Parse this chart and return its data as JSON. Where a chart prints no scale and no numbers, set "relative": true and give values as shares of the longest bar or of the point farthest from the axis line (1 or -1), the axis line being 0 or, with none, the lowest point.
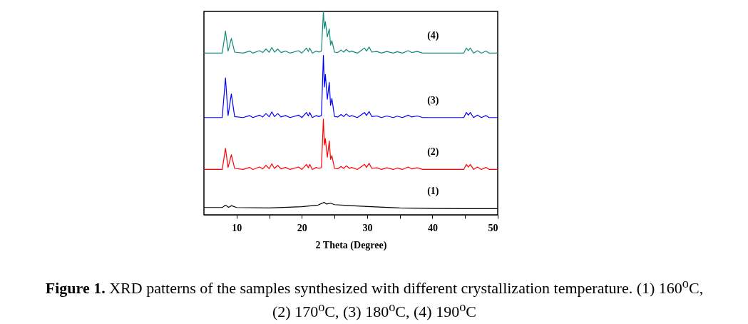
{
  "chart_data": {
    "type": "line",
    "relative": true,
    "title": "Figure 1. XRD patterns of the samples synthesized with different crystallization temperature. (1) 160$^{o}$C, (2) 170$^{o}$C, (3) 180$^{o}$C, (4) 190$^{o}$C",
    "xlabel": "2 Theta (Degree)",
    "xlim": [
      5,
      50
    ],
    "xticks": [
      10,
      {
        "value": 15,
        "label": null
      },
      20,
      {
        "value": 25,
        "label": null
      },
      30,
      {
        "value": 35,
        "label": null
      },
      40,
      {
        "value": 45,
        "label": null
      },
      50
    ],
    "grid": false,
    "legend": false,
    "marker": "none",
    "line_style": "solid",
    "x": [
      5,
      7.8,
      8.3,
      8.7,
      9.2,
      9.7,
      11,
      12,
      12.5,
      13.5,
      14,
      14.5,
      15,
      15.4,
      15.8,
      16.3,
      16.8,
      17.5,
      18.2,
      19.5,
      20,
      20.7,
      21,
      21.2,
      21.6,
      22.2,
      22.6,
      23,
      23.3,
      23.45,
      23.6,
      23.9,
      24.2,
      24.4,
      24.6,
      25,
      25.5,
      26,
      26.4,
      26.8,
      27.3,
      27.6,
      28.5,
      29.6,
      29.9,
      30.3,
      30.7,
      31.5,
      32.2,
      33,
      34,
      34.6,
      35.4,
      36.3,
      36.8,
      37.7,
      38.5,
      42,
      44.8,
      45.2,
      45.5,
      45.8,
      46.3,
      46.9,
      47.5,
      48.2,
      48.7,
      50
    ],
    "series": [
      {
        "name": "(1)",
        "color": "#000000",
        "x": [
          5,
          7.8,
          8.3,
          8.8,
          9.2,
          10,
          15,
          20,
          22.5,
          23.4,
          23.8,
          24.4,
          25,
          27,
          30,
          35,
          40,
          45,
          50
        ],
        "values": [
          0.036,
          0.036,
          0.047,
          0.037,
          0.045,
          0.036,
          0.034,
          0.04,
          0.048,
          0.061,
          0.053,
          0.057,
          0.05,
          0.046,
          0.041,
          0.034,
          0.031,
          0.03,
          0.03
        ]
      },
      {
        "name": "(2)",
        "color": "#ff0000",
        "values": [
          0.223,
          0.223,
          0.327,
          0.233,
          0.295,
          0.228,
          0.223,
          0.233,
          0.223,
          0.235,
          0.226,
          0.243,
          0.227,
          0.251,
          0.228,
          0.243,
          0.226,
          0.233,
          0.223,
          0.235,
          0.223,
          0.248,
          0.231,
          0.248,
          0.223,
          0.233,
          0.228,
          0.233,
          0.471,
          0.343,
          0.374,
          0.283,
          0.363,
          0.273,
          0.291,
          0.228,
          0.226,
          0.238,
          0.228,
          0.241,
          0.228,
          0.233,
          0.223,
          0.248,
          0.233,
          0.253,
          0.228,
          0.231,
          0.223,
          0.231,
          0.223,
          0.23,
          0.223,
          0.235,
          0.226,
          0.231,
          0.223,
          0.223,
          0.223,
          0.248,
          0.235,
          0.248,
          0.223,
          0.235,
          0.223,
          0.233,
          0.223,
          0.223
        ]
      },
      {
        "name": "(3)",
        "color": "#0000ff",
        "values": [
          0.478,
          0.478,
          0.673,
          0.488,
          0.594,
          0.483,
          0.478,
          0.488,
          0.478,
          0.49,
          0.481,
          0.498,
          0.482,
          0.506,
          0.483,
          0.498,
          0.481,
          0.488,
          0.478,
          0.49,
          0.478,
          0.503,
          0.486,
          0.503,
          0.478,
          0.488,
          0.483,
          0.488,
          0.784,
          0.628,
          0.69,
          0.568,
          0.651,
          0.538,
          0.572,
          0.483,
          0.481,
          0.493,
          0.483,
          0.496,
          0.483,
          0.488,
          0.478,
          0.503,
          0.488,
          0.508,
          0.483,
          0.486,
          0.478,
          0.486,
          0.478,
          0.485,
          0.478,
          0.49,
          0.481,
          0.486,
          0.478,
          0.478,
          0.478,
          0.503,
          0.49,
          0.503,
          0.478,
          0.49,
          0.478,
          0.488,
          0.478,
          0.478
        ]
      },
      {
        "name": "(4)",
        "color": "#138a78",
        "values": [
          0.795,
          0.795,
          0.903,
          0.805,
          0.867,
          0.8,
          0.795,
          0.805,
          0.795,
          0.807,
          0.798,
          0.815,
          0.799,
          0.823,
          0.8,
          0.815,
          0.798,
          0.805,
          0.795,
          0.807,
          0.795,
          0.82,
          0.803,
          0.82,
          0.795,
          0.805,
          0.8,
          0.805,
          1,
          0.915,
          0.95,
          0.875,
          0.914,
          0.835,
          0.856,
          0.8,
          0.798,
          0.81,
          0.8,
          0.813,
          0.8,
          0.805,
          0.795,
          0.82,
          0.805,
          0.825,
          0.8,
          0.803,
          0.795,
          0.803,
          0.795,
          0.802,
          0.795,
          0.807,
          0.798,
          0.803,
          0.795,
          0.795,
          0.795,
          0.82,
          0.807,
          0.82,
          0.795,
          0.807,
          0.795,
          0.805,
          0.795,
          0.795
        ]
      }
    ]
  }
}
